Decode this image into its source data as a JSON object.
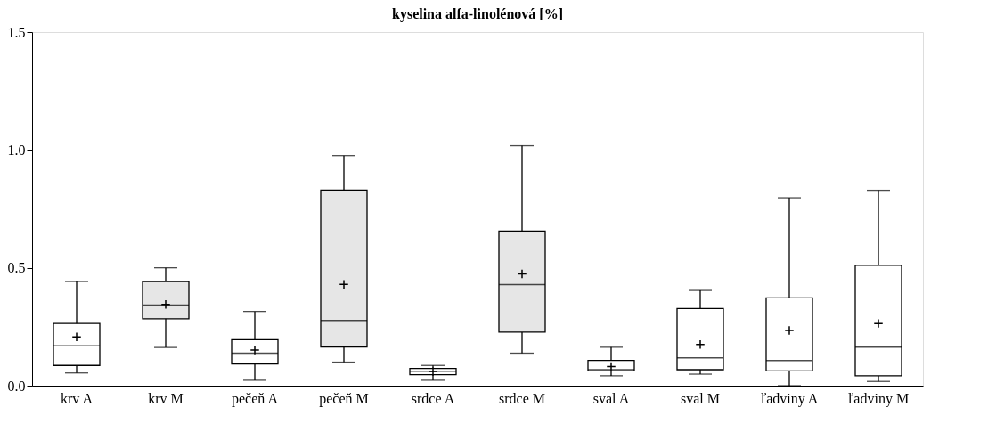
{
  "chart_data": {
    "type": "box",
    "title": "kyselina alfa-linolénová [%]",
    "categories": [
      "krv A",
      "krv M",
      "pečeň A",
      "pečeň M",
      "srdce A",
      "srdce M",
      "sval A",
      "sval M",
      "ľadviny A",
      "ľadviny M"
    ],
    "colors": [
      "#ffffff",
      "#e6e6e6",
      "#ffffff",
      "#e6e6e6",
      "#ffffff",
      "#e6e6e6",
      "#ffffff",
      "#ffffff",
      "#ffffff",
      "#ffffff"
    ],
    "boxes": [
      {
        "low": 0.054,
        "q1": 0.086,
        "median": 0.169,
        "q3": 0.264,
        "high": 0.442,
        "mean": 0.207
      },
      {
        "low": 0.162,
        "q1": 0.284,
        "median": 0.342,
        "q3": 0.442,
        "high": 0.5,
        "mean": 0.345
      },
      {
        "low": 0.023,
        "q1": 0.092,
        "median": 0.138,
        "q3": 0.195,
        "high": 0.315,
        "mean": 0.151
      },
      {
        "low": 0.1,
        "q1": 0.164,
        "median": 0.277,
        "q3": 0.83,
        "high": 0.976,
        "mean": 0.43
      },
      {
        "low": 0.023,
        "q1": 0.047,
        "median": 0.061,
        "q3": 0.073,
        "high": 0.086,
        "mean": 0.06
      },
      {
        "low": 0.138,
        "q1": 0.227,
        "median": 0.429,
        "q3": 0.656,
        "high": 1.018,
        "mean": 0.474
      },
      {
        "low": 0.042,
        "q1": 0.063,
        "median": 0.068,
        "q3": 0.107,
        "high": 0.163,
        "mean": 0.081
      },
      {
        "low": 0.049,
        "q1": 0.068,
        "median": 0.118,
        "q3": 0.327,
        "high": 0.404,
        "mean": 0.175
      },
      {
        "low": 0.0,
        "q1": 0.063,
        "median": 0.107,
        "q3": 0.373,
        "high": 0.797,
        "mean": 0.234
      },
      {
        "low": 0.018,
        "q1": 0.042,
        "median": 0.163,
        "q3": 0.511,
        "high": 0.829,
        "mean": 0.264
      }
    ],
    "ylim": [
      0,
      1.5
    ],
    "yticks": [
      {
        "value": 0,
        "label": "0.0"
      },
      {
        "value": 0.5,
        "label": "0.5"
      },
      {
        "value": 1.0,
        "label": "1.0"
      },
      {
        "value": 1.5,
        "label": "1.5"
      }
    ],
    "grid": false
  }
}
